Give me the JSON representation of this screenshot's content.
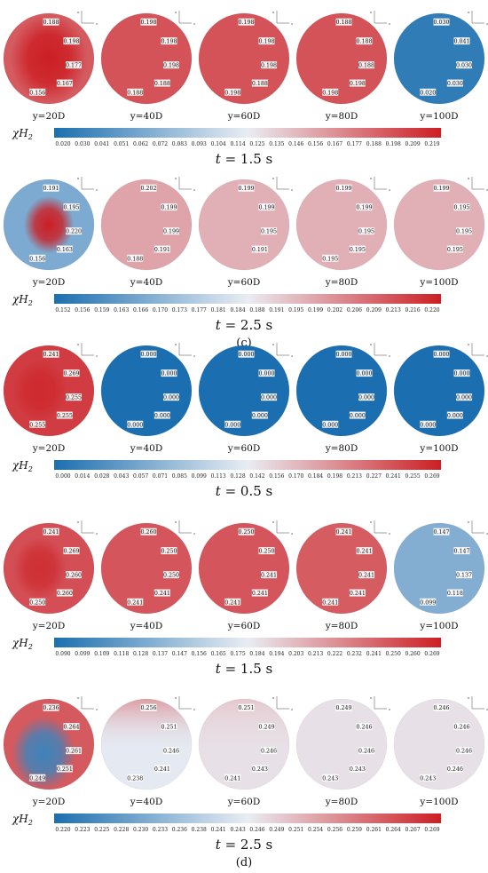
{
  "chart_data": {
    "type": "heatmap",
    "variable_label": "χH",
    "variable_subscript": "2",
    "panel_labels": [
      "(c)",
      "(d)"
    ],
    "cross_section_labels": [
      "y=20D",
      "y=40D",
      "y=60D",
      "y=80D",
      "y=100D"
    ],
    "colormap_colors": [
      "#1b6fb0",
      "#e9edf3",
      "#cc1f24"
    ],
    "axes_glyphs": [
      "x",
      "z"
    ],
    "rows": [
      {
        "panel": "(c)",
        "time_prefix": "t",
        "time_value": "= 1.5 s",
        "colorbar": {
          "min": 0.02,
          "max": 0.219,
          "ticks": [
            "0.020",
            "0.030",
            "0.041",
            "0.051",
            "0.062",
            "0.072",
            "0.083",
            "0.093",
            "0.104",
            "0.114",
            "0.125",
            "0.135",
            "0.146",
            "0.156",
            "0.167",
            "0.177",
            "0.188",
            "0.198",
            "0.209",
            "0.219"
          ]
        },
        "sections": [
          {
            "label": "y=20D",
            "bg": 0.19,
            "blob": 0.219,
            "blob_size": 0.85,
            "contours": [
              "0.188",
              "0.198",
              "0.177",
              "0.167",
              "0.156"
            ]
          },
          {
            "label": "y=40D",
            "bg": 0.194,
            "contours": [
              "0.198",
              "0.198",
              "0.198",
              "0.188",
              "0.188"
            ]
          },
          {
            "label": "y=60D",
            "bg": 0.194,
            "contours": [
              "0.198",
              "0.198",
              "0.198",
              "0.188",
              "0.198"
            ]
          },
          {
            "label": "y=80D",
            "bg": 0.194,
            "contours": [
              "0.188",
              "0.188",
              "0.188",
              "0.198",
              "0.198"
            ]
          },
          {
            "label": "y=100D",
            "bg": 0.03,
            "contours": [
              "0.030",
              "0.041",
              "0.030",
              "0.030",
              "0.020"
            ]
          }
        ]
      },
      {
        "panel": "(c)",
        "time_prefix": "t",
        "time_value": "= 2.5 s",
        "colorbar": {
          "min": 0.152,
          "max": 0.22,
          "ticks": [
            "0.152",
            "0.156",
            "0.159",
            "0.163",
            "0.166",
            "0.170",
            "0.173",
            "0.177",
            "0.181",
            "0.184",
            "0.188",
            "0.191",
            "0.195",
            "0.199",
            "0.202",
            "0.206",
            "0.209",
            "0.213",
            "0.216",
            "0.220"
          ]
        },
        "sections": [
          {
            "label": "y=20D",
            "bg": 0.168,
            "blob": 0.22,
            "blob_size": 0.55,
            "contours": [
              "0.191",
              "0.195",
              "0.220",
              "0.163",
              "0.156"
            ]
          },
          {
            "label": "y=40D",
            "bg": 0.198,
            "contours": [
              "0.202",
              "0.199",
              "0.199",
              "0.191",
              "0.188"
            ]
          },
          {
            "label": "y=60D",
            "bg": 0.196,
            "contours": [
              "0.199",
              "0.199",
              "0.195",
              "0.191"
            ]
          },
          {
            "label": "y=80D",
            "bg": 0.196,
            "contours": [
              "0.199",
              "0.199",
              "0.195",
              "0.195",
              "0.195"
            ]
          },
          {
            "label": "y=100D",
            "bg": 0.196,
            "contours": [
              "0.199",
              "0.195",
              "0.195",
              "0.195"
            ]
          }
        ]
      },
      {
        "panel": "(d)",
        "time_prefix": "t",
        "time_value": "= 0.5 s",
        "colorbar": {
          "min": 0.0,
          "max": 0.269,
          "ticks": [
            "0.000",
            "0.014",
            "0.028",
            "0.043",
            "0.057",
            "0.071",
            "0.085",
            "0.099",
            "0.113",
            "0.128",
            "0.142",
            "0.156",
            "0.170",
            "0.184",
            "0.198",
            "0.213",
            "0.227",
            "0.241",
            "0.255",
            "0.269"
          ]
        },
        "sections": [
          {
            "label": "y=20D",
            "bg": 0.25,
            "blob": 0.262,
            "blob_size": 0.6,
            "contours": [
              "0.241",
              "0.269",
              "0.255",
              "0.255",
              "0.255"
            ]
          },
          {
            "label": "y=40D",
            "bg": 0.0,
            "contours": [
              "0.000",
              "0.000",
              "0.000",
              "0.000",
              "0.000"
            ]
          },
          {
            "label": "y=60D",
            "bg": 0.0,
            "contours": [
              "0.000",
              "0.000",
              "0.000",
              "0.000",
              "0.000"
            ]
          },
          {
            "label": "y=80D",
            "bg": 0.0,
            "contours": [
              "0.000",
              "0.000",
              "0.000",
              "0.000",
              "0.000"
            ]
          },
          {
            "label": "y=100D",
            "bg": 0.0,
            "contours": [
              "0.000",
              "0.000",
              "0.000",
              "0.000",
              "0.000"
            ]
          }
        ]
      },
      {
        "panel": "(d)",
        "time_prefix": "t",
        "time_value": "= 1.5 s",
        "colorbar": {
          "min": 0.09,
          "max": 0.269,
          "ticks": [
            "0.090",
            "0.099",
            "0.109",
            "0.118",
            "0.128",
            "0.137",
            "0.147",
            "0.156",
            "0.165",
            "0.175",
            "0.184",
            "0.194",
            "0.203",
            "0.213",
            "0.222",
            "0.232",
            "0.241",
            "0.250",
            "0.260",
            "0.269"
          ]
        },
        "sections": [
          {
            "label": "y=20D",
            "bg": 0.248,
            "blob": 0.262,
            "blob_size": 0.6,
            "contours": [
              "0.241",
              "0.269",
              "0.260",
              "0.260",
              "0.250"
            ]
          },
          {
            "label": "y=40D",
            "bg": 0.245,
            "contours": [
              "0.260",
              "0.250",
              "0.250",
              "0.241",
              "0.241"
            ]
          },
          {
            "label": "y=60D",
            "bg": 0.245,
            "contours": [
              "0.250",
              "0.250",
              "0.241",
              "0.241",
              "0.241"
            ]
          },
          {
            "label": "y=80D",
            "bg": 0.242,
            "contours": [
              "0.241",
              "0.241",
              "0.241",
              "0.241",
              "0.241"
            ]
          },
          {
            "label": "y=100D",
            "bg": 0.135,
            "contours": [
              "0.147",
              "0.147",
              "0.137",
              "0.118",
              "0.099"
            ]
          }
        ]
      },
      {
        "panel": "(d)",
        "time_prefix": "t",
        "time_value": "= 2.5 s",
        "colorbar": {
          "min": 0.22,
          "max": 0.269,
          "ticks": [
            "0.220",
            "0.223",
            "0.225",
            "0.228",
            "0.230",
            "0.233",
            "0.236",
            "0.238",
            "0.241",
            "0.243",
            "0.246",
            "0.249",
            "0.251",
            "0.254",
            "0.256",
            "0.259",
            "0.261",
            "0.264",
            "0.267",
            "0.269"
          ]
        },
        "sections": [
          {
            "label": "y=20D",
            "bg": 0.262,
            "blob": 0.224,
            "blob_size": 0.7,
            "contours": [
              "0.236",
              "0.264",
              "0.261",
              "0.251",
              "0.249"
            ]
          },
          {
            "label": "y=40D",
            "bg": 0.244,
            "top": 0.254,
            "contours": [
              "0.256",
              "0.251",
              "0.246",
              "0.241",
              "0.238"
            ]
          },
          {
            "label": "y=60D",
            "bg": 0.246,
            "top": 0.249,
            "contours": [
              "0.251",
              "0.249",
              "0.246",
              "0.243",
              "0.241"
            ]
          },
          {
            "label": "y=80D",
            "bg": 0.246,
            "contours": [
              "0.249",
              "0.246",
              "0.246",
              "0.243",
              "0.243"
            ]
          },
          {
            "label": "y=100D",
            "bg": 0.246,
            "contours": [
              "0.246",
              "0.246",
              "0.246",
              "0.246",
              "0.243"
            ]
          }
        ]
      }
    ]
  }
}
